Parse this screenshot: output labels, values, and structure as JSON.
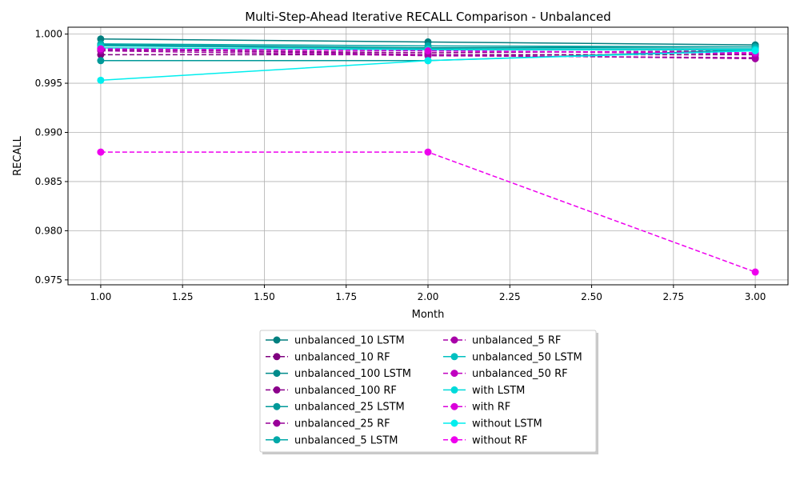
{
  "chart_data": {
    "type": "line",
    "title": "Multi-Step-Ahead Iterative RECALL Comparison - Unbalanced",
    "xlabel": "Month",
    "ylabel": "RECALL",
    "xlim": [
      0.9,
      3.1
    ],
    "ylim": [
      0.9745,
      1.0007
    ],
    "xticks": [
      "1.00",
      "1.25",
      "1.50",
      "1.75",
      "2.00",
      "2.25",
      "2.50",
      "2.75",
      "3.00"
    ],
    "yticks": [
      "0.975",
      "0.980",
      "0.985",
      "0.990",
      "0.995",
      "1.000"
    ],
    "grid": true,
    "legend_position": "below",
    "x": [
      1,
      2,
      3
    ],
    "series": [
      {
        "name": "unbalanced_10 LSTM",
        "color": "#007f7f",
        "dashed": false,
        "values": [
          0.9995,
          0.9992,
          0.9989
        ]
      },
      {
        "name": "unbalanced_10 RF",
        "color": "#7f007f",
        "dashed": true,
        "values": [
          0.9979,
          0.9979,
          0.9979
        ]
      },
      {
        "name": "unbalanced_100 LSTM",
        "color": "#008b8b",
        "dashed": false,
        "values": [
          0.9989,
          0.9986,
          0.9987
        ]
      },
      {
        "name": "unbalanced_100 RF",
        "color": "#8b008b",
        "dashed": true,
        "values": [
          0.9984,
          0.9981,
          0.9983
        ]
      },
      {
        "name": "unbalanced_25 LSTM",
        "color": "#009999",
        "dashed": false,
        "values": [
          0.9973,
          0.9973,
          0.9984
        ]
      },
      {
        "name": "unbalanced_25 RF",
        "color": "#990099",
        "dashed": true,
        "values": [
          0.9985,
          0.9979,
          0.9975
        ]
      },
      {
        "name": "unbalanced_5 LSTM",
        "color": "#00a8a8",
        "dashed": false,
        "values": [
          0.999,
          0.9988,
          0.9987
        ]
      },
      {
        "name": "unbalanced_5 RF",
        "color": "#a800a8",
        "dashed": true,
        "values": [
          0.9983,
          0.9978,
          0.9976
        ]
      },
      {
        "name": "unbalanced_50 LSTM",
        "color": "#00c0c0",
        "dashed": false,
        "values": [
          0.9988,
          0.9985,
          0.9985
        ]
      },
      {
        "name": "unbalanced_50 RF",
        "color": "#c000c0",
        "dashed": true,
        "values": [
          0.9985,
          0.9983,
          0.998
        ]
      },
      {
        "name": "with LSTM",
        "color": "#00dada",
        "dashed": false,
        "values": [
          0.9986,
          0.9984,
          0.9984
        ]
      },
      {
        "name": "with RF",
        "color": "#da00da",
        "dashed": true,
        "values": [
          0.9985,
          0.9983,
          0.9981
        ]
      },
      {
        "name": "without LSTM",
        "color": "#00eeee",
        "dashed": false,
        "values": [
          0.9953,
          0.9973,
          0.9983
        ]
      },
      {
        "name": "without RF",
        "color": "#ee00ee",
        "dashed": true,
        "values": [
          0.988,
          0.988,
          0.9758
        ]
      }
    ]
  }
}
